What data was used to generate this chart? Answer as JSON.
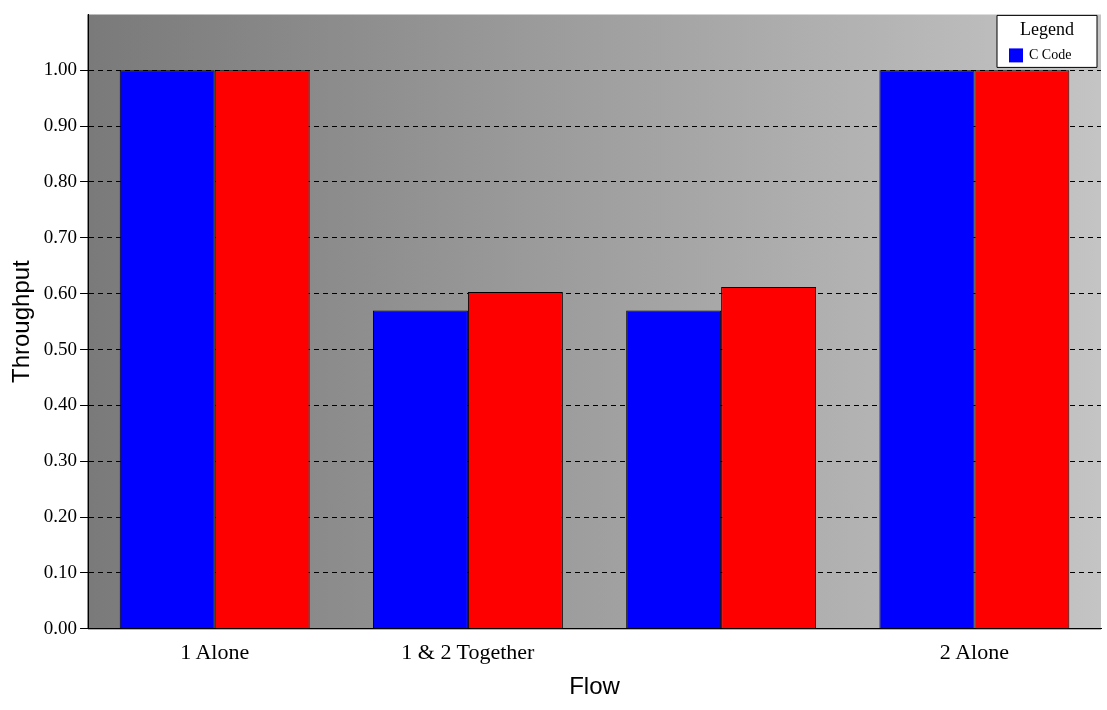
{
  "chart_data": {
    "type": "bar",
    "xlabel": "Flow",
    "ylabel": "Throughput",
    "legend_title": "Legend",
    "categories": [
      "1 Alone",
      "1 & 2 Together",
      null,
      "2 Alone"
    ],
    "series": [
      {
        "name": "C Code",
        "color": "#0000ff",
        "values": [
          1.0,
          0.57,
          0.57,
          1.0
        ]
      },
      {
        "color": "#ff0000",
        "values": [
          1.0,
          0.603,
          0.612,
          1.0
        ]
      }
    ],
    "ylim": [
      0,
      1.1
    ],
    "yticks": [
      {
        "value": 0,
        "label": "0.00"
      },
      {
        "value": 0.1,
        "label": "0.10"
      },
      {
        "value": 0.2,
        "label": "0.20"
      },
      {
        "value": 0.3,
        "label": "0.30"
      },
      {
        "value": 0.4,
        "label": "0.40"
      },
      {
        "value": 0.5,
        "label": "0.50"
      },
      {
        "value": 0.6,
        "label": "0.60"
      },
      {
        "value": 0.7,
        "label": "0.70"
      },
      {
        "value": 0.8,
        "label": "0.80"
      },
      {
        "value": 0.9,
        "label": "0.90"
      },
      {
        "value": 1.0,
        "label": "1.00"
      }
    ],
    "grid": "y",
    "legend": "top right"
  }
}
